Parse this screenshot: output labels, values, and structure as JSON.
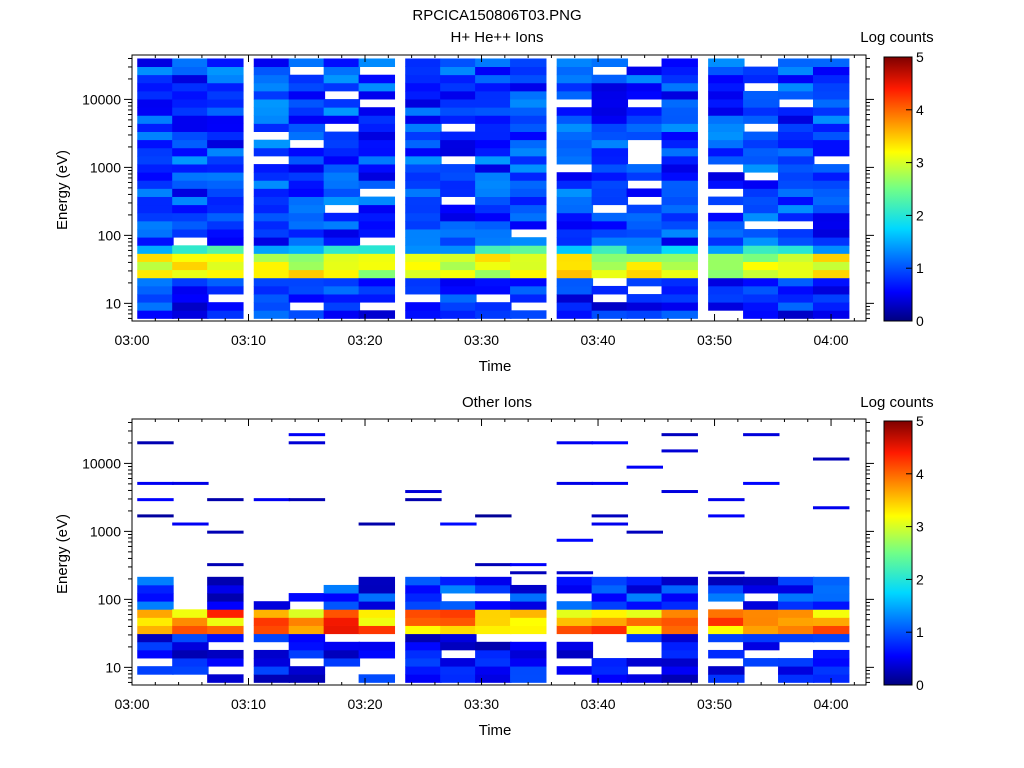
{
  "figure": {
    "title": "RPCICA150806T03.PNG"
  },
  "chart_data": [
    {
      "type": "heatmap",
      "title": "H+ He++ Ions",
      "xlabel": "Time",
      "ylabel": "Energy (eV)",
      "colorbar_label": "Log counts",
      "colorbar_ticks": [
        "0",
        "1",
        "2",
        "3",
        "4",
        "5"
      ],
      "colorbar_range": [
        0,
        5
      ],
      "colormap": "rainbow",
      "x_range": [
        "03:00",
        "04:03"
      ],
      "x_ticks": [
        "03:00",
        "03:10",
        "03:20",
        "03:30",
        "03:40",
        "03:50",
        "04:00"
      ],
      "y_scale": "log",
      "y_range": [
        5.5,
        45000
      ],
      "y_ticks": [
        "10",
        "100",
        "1000",
        "10000"
      ],
      "time_bins": [
        "03:02",
        "03:05",
        "03:08",
        "03:12",
        "03:15",
        "03:18",
        "03:21",
        "03:25",
        "03:28",
        "03:31",
        "03:34",
        "03:38",
        "03:41",
        "03:44",
        "03:47",
        "03:51",
        "03:54",
        "03:57",
        "04:00"
      ],
      "features": {
        "peak_energy_range_eV": [
          25,
          65
        ],
        "peak_log_counts": [
          2.5,
          3.6
        ],
        "background_log_counts": [
          0.4,
          1.4
        ]
      }
    },
    {
      "type": "heatmap",
      "title": "Other Ions",
      "xlabel": "Time",
      "ylabel": "Energy (eV)",
      "colorbar_label": "Log counts",
      "colorbar_ticks": [
        "0",
        "1",
        "2",
        "3",
        "4",
        "5"
      ],
      "colorbar_range": [
        0,
        5
      ],
      "colormap": "rainbow",
      "x_range": [
        "03:00",
        "04:03"
      ],
      "x_ticks": [
        "03:00",
        "03:10",
        "03:20",
        "03:30",
        "03:40",
        "03:50",
        "04:00"
      ],
      "y_scale": "log",
      "y_range": [
        5.5,
        45000
      ],
      "y_ticks": [
        "10",
        "100",
        "1000",
        "10000"
      ],
      "time_bins": [
        "03:02",
        "03:05",
        "03:08",
        "03:12",
        "03:15",
        "03:18",
        "03:21",
        "03:25",
        "03:28",
        "03:31",
        "03:34",
        "03:38",
        "03:41",
        "03:44",
        "03:47",
        "03:51",
        "03:54",
        "03:57",
        "04:00"
      ],
      "features": {
        "peak_energy_range_eV": [
          30,
          65
        ],
        "peak_log_counts": [
          3.0,
          4.5
        ],
        "background_log_counts": [
          0.1,
          0.6
        ],
        "sparse_above_eV": 200
      }
    }
  ]
}
